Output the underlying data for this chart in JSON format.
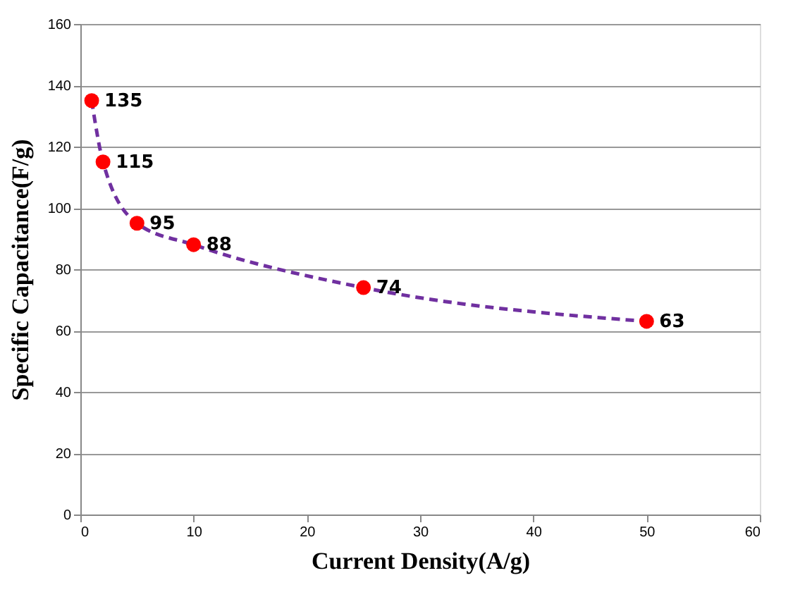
{
  "chart_data": {
    "type": "scatter",
    "xlabel": "Current Density(A/g)",
    "ylabel": "Specific Capacitance(F/g)",
    "xlim": [
      0,
      60
    ],
    "xticks": [
      0,
      10,
      20,
      30,
      40,
      50,
      60
    ],
    "ylim": [
      0,
      160
    ],
    "yticks": [
      0,
      20,
      40,
      60,
      80,
      100,
      120,
      140,
      160
    ],
    "grid": "y",
    "series": [
      {
        "type": "line",
        "color": "#7030a0",
        "line_style": "dashed",
        "x": [
          1,
          2,
          5,
          10,
          25,
          50
        ],
        "values": [
          135,
          115,
          95,
          88,
          74,
          63
        ]
      },
      {
        "color": "#ff0000",
        "marker": "circle",
        "x": [
          1,
          2,
          5,
          10,
          25,
          50
        ],
        "values": [
          135,
          115,
          95,
          88,
          74,
          63
        ],
        "value_labels": [
          "135",
          "115",
          "95",
          "88",
          "74",
          "63"
        ]
      }
    ]
  }
}
